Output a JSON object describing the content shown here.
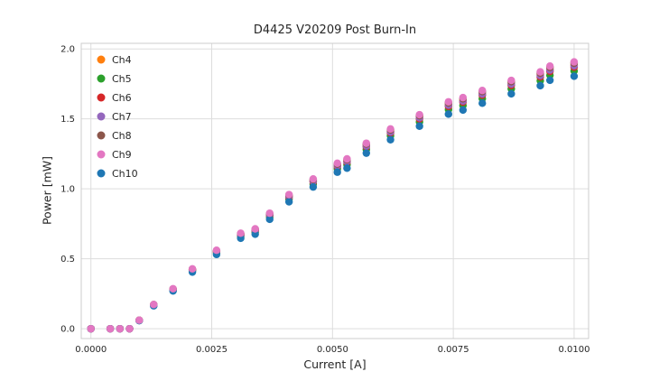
{
  "figure": {
    "background": "#ffffff",
    "grid_color": "#dddddd",
    "spine_color": "#cccccc",
    "text_color": "#262626"
  },
  "chart_data": {
    "type": "scatter",
    "title": "D4425 V20209 Post Burn-In",
    "xlabel": "Current [A]",
    "ylabel": "Power [mW]",
    "grid": true,
    "legend_position": "upper-left",
    "xlim": [
      -0.0002,
      0.0103
    ],
    "ylim": [
      -0.07,
      2.04
    ],
    "xticks": {
      "values": [
        0.0,
        0.0025,
        0.005,
        0.0075,
        0.01
      ],
      "labels": [
        "0.0000",
        "0.0025",
        "0.0050",
        "0.0075",
        "0.0100"
      ]
    },
    "yticks": {
      "values": [
        0.0,
        0.5,
        1.0,
        1.5,
        2.0
      ],
      "labels": [
        "0.0",
        "0.5",
        "1.0",
        "1.5",
        "2.0"
      ]
    },
    "x": [
      0.0,
      0.0004,
      0.0006,
      0.0008,
      0.001,
      0.0013,
      0.0017,
      0.0021,
      0.0026,
      0.0031,
      0.0034,
      0.0037,
      0.0041,
      0.0046,
      0.0051,
      0.0053,
      0.0057,
      0.0062,
      0.0068,
      0.0074,
      0.0077,
      0.0081,
      0.0087,
      0.0093,
      0.0095,
      0.01
    ],
    "series": [
      {
        "name": "Ch4",
        "color": "#ff7f0e",
        "values": [
          0,
          0,
          0,
          0,
          0.06,
          0.171,
          0.282,
          0.423,
          0.554,
          0.675,
          0.706,
          0.816,
          0.948,
          1.058,
          1.169,
          1.2,
          1.31,
          1.411,
          1.512,
          1.603,
          1.633,
          1.683,
          1.754,
          1.814,
          1.855,
          1.885
        ]
      },
      {
        "name": "Ch5",
        "color": "#2ca02c",
        "values": [
          0,
          0,
          0,
          0,
          0.059,
          0.167,
          0.276,
          0.414,
          0.542,
          0.66,
          0.69,
          0.798,
          0.926,
          1.034,
          1.143,
          1.172,
          1.281,
          1.379,
          1.478,
          1.566,
          1.596,
          1.645,
          1.714,
          1.773,
          1.812,
          1.842
        ]
      },
      {
        "name": "Ch6",
        "color": "#d62728",
        "values": [
          0,
          0,
          0,
          0,
          0.06,
          0.17,
          0.28,
          0.42,
          0.55,
          0.67,
          0.7,
          0.81,
          0.94,
          1.05,
          1.16,
          1.19,
          1.3,
          1.4,
          1.5,
          1.59,
          1.62,
          1.67,
          1.74,
          1.8,
          1.84,
          1.87
        ]
      },
      {
        "name": "Ch7",
        "color": "#9467bd",
        "values": [
          0,
          0,
          0,
          0,
          0.06,
          0.171,
          0.281,
          0.422,
          0.553,
          0.673,
          0.704,
          0.814,
          0.945,
          1.055,
          1.166,
          1.196,
          1.307,
          1.407,
          1.508,
          1.598,
          1.628,
          1.678,
          1.749,
          1.809,
          1.849,
          1.879
        ]
      },
      {
        "name": "Ch8",
        "color": "#8c564b",
        "values": [
          0,
          0,
          0,
          0,
          0.061,
          0.173,
          0.284,
          0.426,
          0.558,
          0.68,
          0.711,
          0.822,
          0.954,
          1.066,
          1.177,
          1.208,
          1.32,
          1.421,
          1.523,
          1.614,
          1.644,
          1.695,
          1.766,
          1.827,
          1.868,
          1.898
        ]
      },
      {
        "name": "Ch9",
        "color": "#e377c2",
        "values": [
          0,
          0,
          0,
          0,
          0.061,
          0.173,
          0.286,
          0.428,
          0.561,
          0.683,
          0.714,
          0.826,
          0.959,
          1.071,
          1.183,
          1.214,
          1.326,
          1.428,
          1.53,
          1.622,
          1.652,
          1.703,
          1.775,
          1.836,
          1.877,
          1.907
        ]
      },
      {
        "name": "Ch10",
        "color": "#1f77b4",
        "values": [
          0,
          0,
          0,
          0,
          0.058,
          0.164,
          0.27,
          0.405,
          0.531,
          0.647,
          0.676,
          0.782,
          0.907,
          1.013,
          1.119,
          1.148,
          1.255,
          1.351,
          1.448,
          1.534,
          1.563,
          1.612,
          1.679,
          1.737,
          1.776,
          1.805
        ]
      }
    ],
    "draw_order": [
      "Ch4",
      "Ch5",
      "Ch6",
      "Ch7",
      "Ch8",
      "Ch10",
      "Ch9"
    ]
  }
}
